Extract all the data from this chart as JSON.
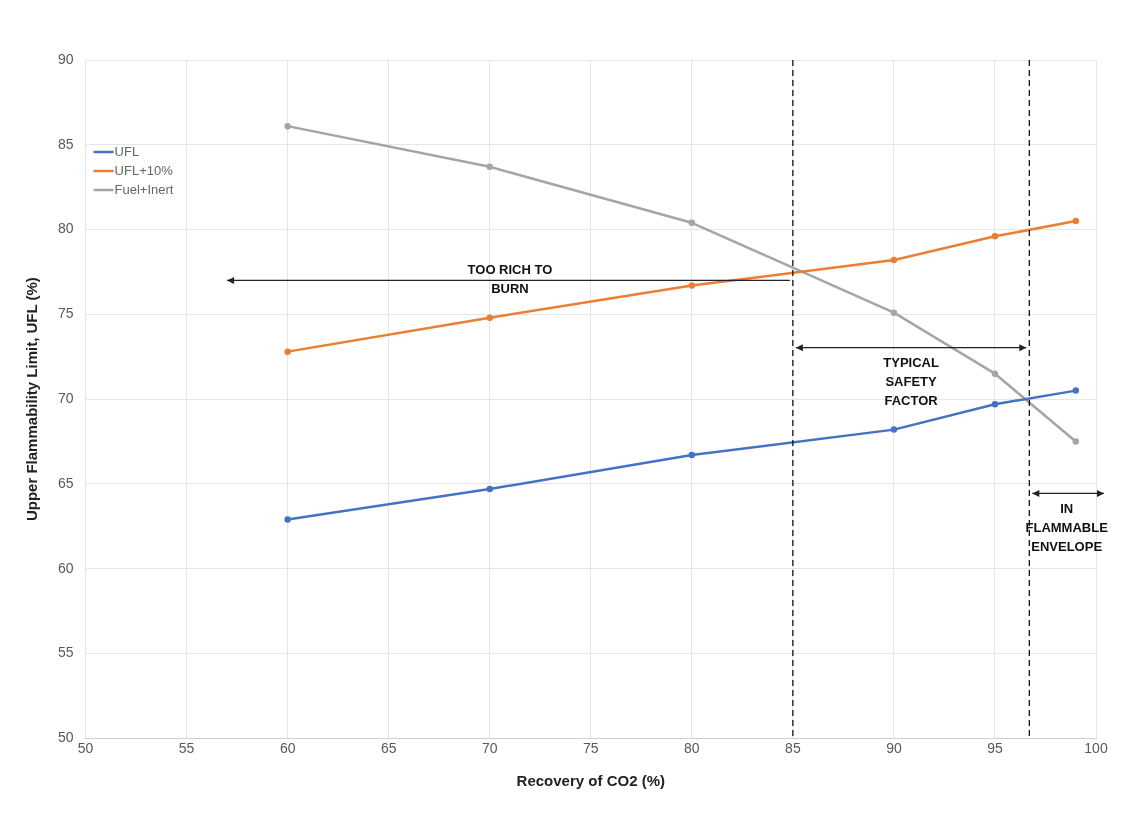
{
  "chart_data": {
    "type": "line",
    "xlabel": "Recovery of CO2 (%)",
    "ylabel": "Upper Flammability Limit, UFL (%)",
    "x": [
      60,
      70,
      80,
      90,
      95,
      99
    ],
    "series": [
      {
        "name": "UFL",
        "color": "#4472c4",
        "values": [
          62.9,
          64.7,
          66.7,
          68.2,
          69.7,
          70.5
        ]
      },
      {
        "name": "UFL+10%",
        "color": "#ed7d31",
        "values": [
          72.8,
          74.8,
          76.7,
          78.2,
          79.6,
          80.5
        ]
      },
      {
        "name": "Fuel+Inert",
        "color": "#a5a5a5",
        "values": [
          86.1,
          83.7,
          80.4,
          75.1,
          71.5,
          67.5
        ]
      }
    ],
    "xlim": [
      50,
      100
    ],
    "xticks": [
      50,
      55,
      60,
      65,
      70,
      75,
      80,
      85,
      90,
      95,
      100
    ],
    "ylim": [
      50,
      90
    ],
    "yticks": [
      50,
      55,
      60,
      65,
      70,
      75,
      80,
      85,
      90
    ],
    "grid": true,
    "legend": "top left",
    "marker": "circle",
    "line_style": "solid",
    "ref_lines": [
      {
        "axis": "x",
        "value": 85,
        "color": "#000000",
        "line_style": "dashed"
      },
      {
        "axis": "x",
        "value": 96.7,
        "color": "#000000",
        "line_style": "dashed"
      }
    ],
    "annotations": [
      "TOO RICH TO BURN",
      "TYPICAL SAFETY FACTOR",
      "IN FLAMMABLE ENVELOPE"
    ]
  }
}
